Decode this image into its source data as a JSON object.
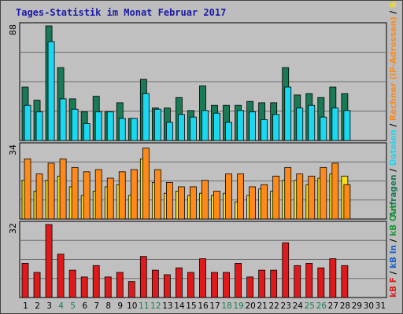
{
  "chart_data": [
    {
      "type": "bar",
      "title": "Tages-Statistik im Monat Februar 2017",
      "categories": [
        "1",
        "2",
        "3",
        "4",
        "5",
        "6",
        "7",
        "8",
        "9",
        "10",
        "11",
        "12",
        "13",
        "14",
        "15",
        "16",
        "17",
        "18",
        "19",
        "20",
        "21",
        "22",
        "23",
        "24",
        "25",
        "26",
        "27",
        "28",
        "29",
        "30",
        "31"
      ],
      "weekend_categories": [
        "4",
        "5",
        "11",
        "12",
        "18",
        "19",
        "25",
        "26"
      ],
      "ymax_label": "88",
      "ylim": [
        0,
        88
      ],
      "series": [
        {
          "name": "Anfragen",
          "color": "#1a7a55",
          "values": [
            41,
            31,
            88,
            56,
            32,
            22,
            34,
            22,
            29,
            17,
            47,
            25,
            25,
            33,
            23,
            42,
            27,
            27,
            27,
            30,
            29,
            29,
            56,
            35,
            36,
            33,
            41,
            36,
            0,
            0,
            0
          ]
        },
        {
          "name": "Dateien",
          "color": "#1ad8f0",
          "values": [
            27,
            22,
            76,
            32,
            24,
            13,
            22,
            22,
            17,
            17,
            36,
            24,
            14,
            20,
            18,
            23,
            21,
            14,
            23,
            22,
            16,
            20,
            41,
            25,
            27,
            18,
            25,
            23,
            0,
            0,
            0
          ]
        }
      ],
      "grid": true
    },
    {
      "type": "bar",
      "ymax_label": "34",
      "ylim": [
        0,
        34
      ],
      "series": [
        {
          "name": "Seiten",
          "color": "#f5e01a",
          "values": [
            18,
            13,
            18,
            20,
            15,
            11,
            13,
            15,
            16,
            11,
            28,
            17,
            12,
            13,
            11,
            12,
            11,
            12,
            8,
            11,
            14,
            13,
            18,
            18,
            16,
            19,
            21,
            20,
            0,
            0,
            0
          ]
        },
        {
          "name": "Rechner (IP-Adressen)",
          "color": "#ff8a1a",
          "values": [
            28,
            21,
            26,
            28,
            24,
            22,
            23,
            19,
            22,
            23,
            33,
            23,
            17,
            15,
            15,
            18,
            13,
            21,
            21,
            15,
            16,
            20,
            24,
            21,
            20,
            24,
            26,
            16,
            0,
            0,
            0
          ]
        }
      ],
      "grid": true
    },
    {
      "type": "bar",
      "ymax_label": "32",
      "ylim": [
        0,
        32
      ],
      "series": [
        {
          "name": "kB F",
          "color": "#e01a1a",
          "values": [
            15,
            11,
            32,
            19,
            12,
            9,
            14,
            9,
            11,
            7,
            18,
            12,
            10,
            13,
            11,
            17,
            11,
            11,
            15,
            9,
            12,
            12,
            24,
            14,
            15,
            13,
            17,
            14,
            0,
            0,
            0
          ]
        }
      ],
      "grid": true
    }
  ],
  "right_legend": {
    "top": [
      {
        "text": "Anfragen",
        "color": "#1a7a55"
      },
      {
        "text": " / ",
        "color": "#000000"
      },
      {
        "text": "Dateien",
        "color": "#1ad8f0"
      },
      {
        "text": " / ",
        "color": "#000000"
      },
      {
        "text": "Rechner (IP-Adressen)",
        "color": "#ff8a1a"
      },
      {
        "text": " / ",
        "color": "#000000"
      },
      {
        "text": "Seiten",
        "color": "#f5e01a"
      }
    ],
    "bottom": [
      {
        "text": "kB F",
        "color": "#e01a1a"
      },
      {
        "text": " / ",
        "color": "#000000"
      },
      {
        "text": "kB In",
        "color": "#1a60d0"
      },
      {
        "text": " / ",
        "color": "#000000"
      },
      {
        "text": "kB Out",
        "color": "#1a9a3a"
      }
    ]
  },
  "colors": {
    "background": "#bdbdbd",
    "plot": "#c0c0c0",
    "grid": "#6e6e6e",
    "weekday_label": "#000000",
    "weekend_label": "#1a8050"
  }
}
